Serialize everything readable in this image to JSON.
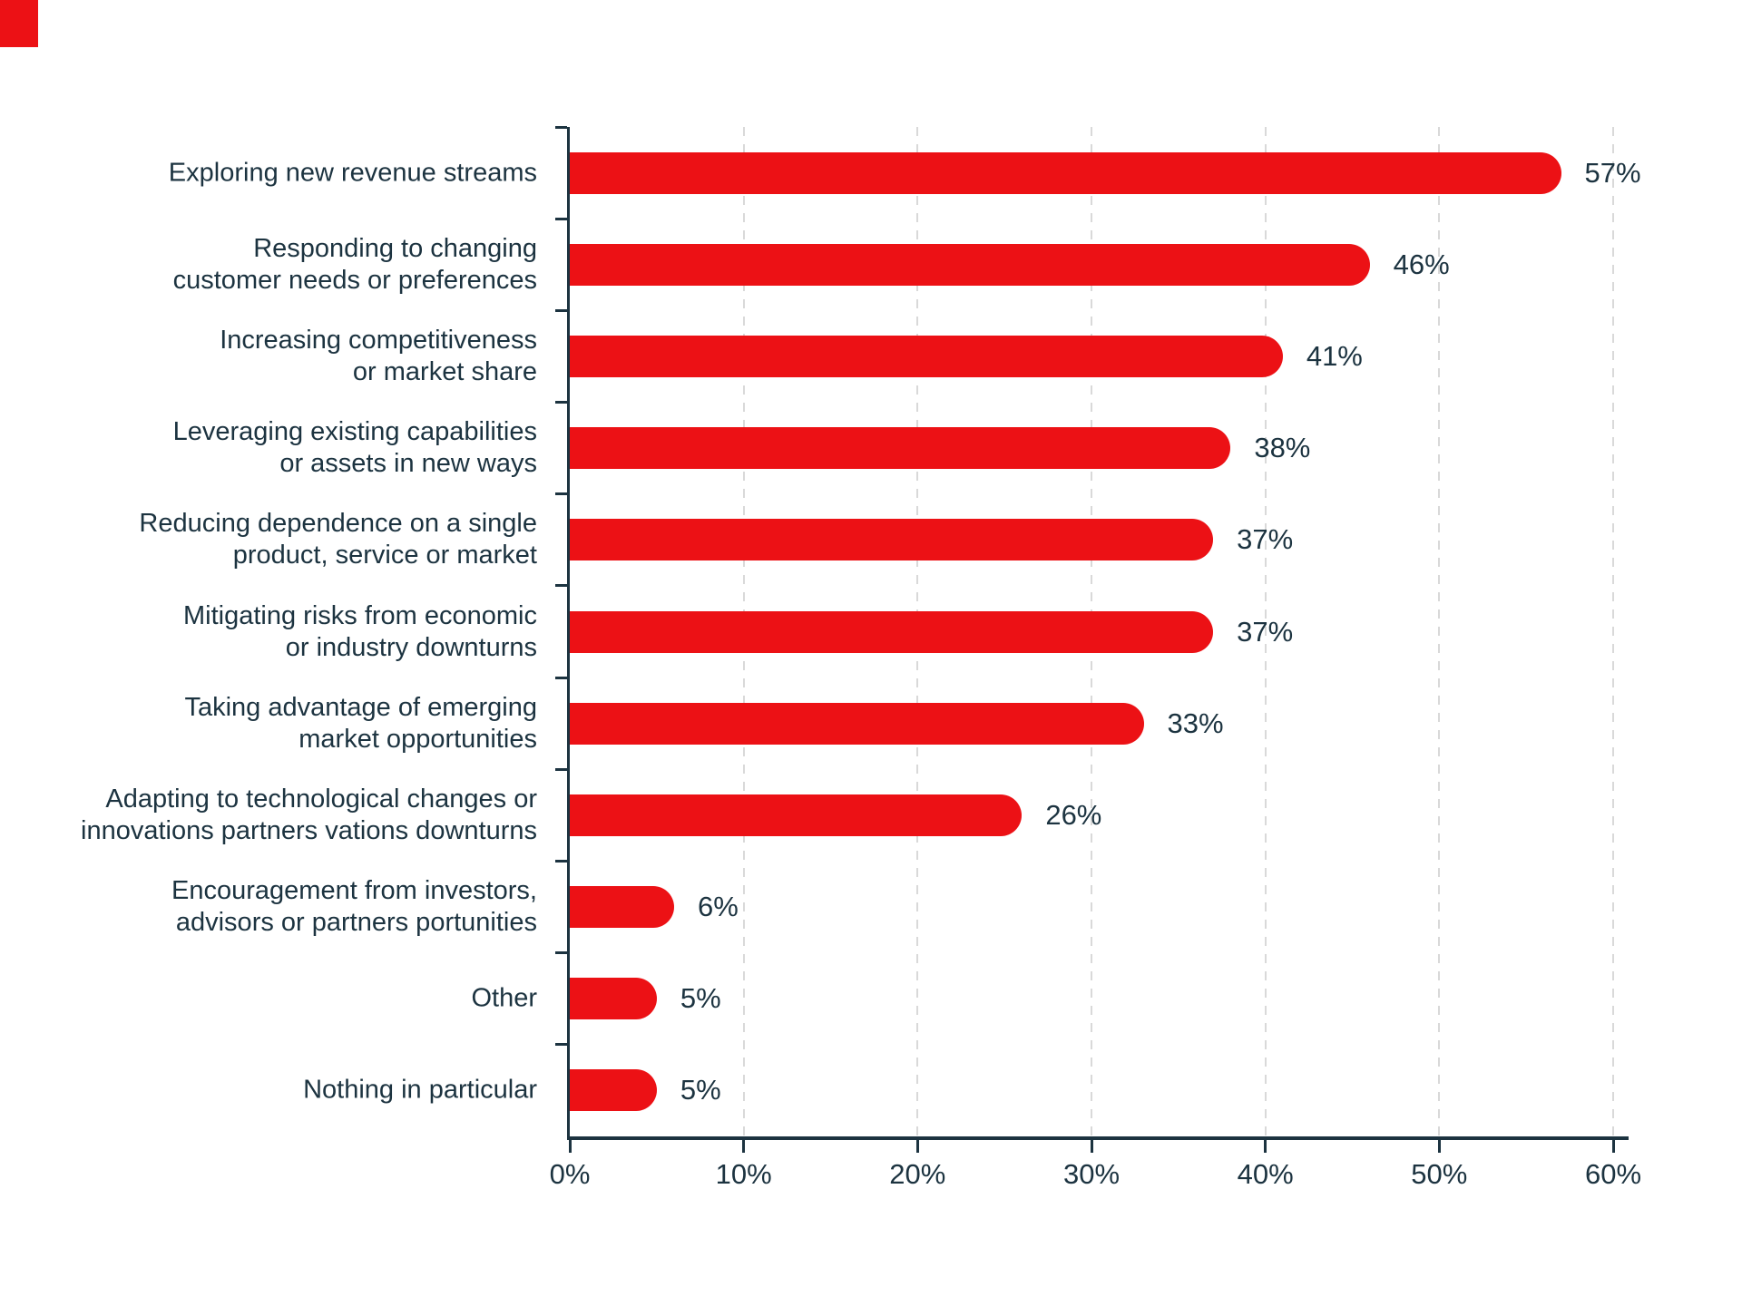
{
  "decor": {
    "corner_block_color": "#EC1115"
  },
  "chart_data": {
    "type": "bar",
    "orientation": "horizontal",
    "title": "",
    "xlabel": "",
    "ylabel": "",
    "categories": [
      "Exploring new revenue streams",
      "Responding to changing\ncustomer needs or preferences",
      "Increasing competitiveness\nor market share",
      "Leveraging existing capabilities\nor assets in new ways",
      "Reducing dependence on a single\nproduct, service or market",
      "Mitigating risks from economic\nor industry downturns",
      "Taking advantage of emerging\nmarket opportunities",
      "Adapting to technological changes or\ninnovations partners vations downturns",
      "Encouragement from investors,\nadvisors or partners portunities",
      "Other",
      "Nothing in particular"
    ],
    "values": [
      57,
      46,
      41,
      38,
      37,
      37,
      33,
      26,
      6,
      5,
      5
    ],
    "value_labels": [
      "57%",
      "46%",
      "41%",
      "38%",
      "37%",
      "37%",
      "33%",
      "26%",
      "6%",
      "5%",
      "5%"
    ],
    "xlim": [
      0,
      60
    ],
    "x_tick_values": [
      0,
      10,
      20,
      30,
      40,
      50,
      60
    ],
    "x_tick_labels": [
      "0%",
      "10%",
      "20%",
      "30%",
      "40%",
      "50%",
      "60%"
    ],
    "grid": "vertical-dashed",
    "legend": "none",
    "bar_color": "#EC1115",
    "axis_color": "#1C3340",
    "text_color": "#1C3340",
    "gridline_color": "#D9D9D9"
  }
}
